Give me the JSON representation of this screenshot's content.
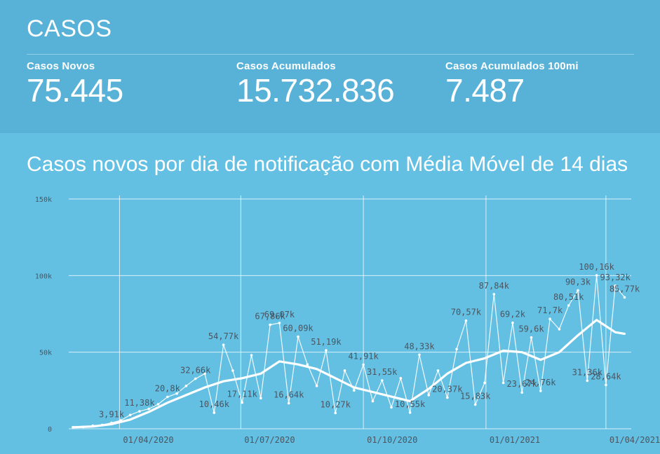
{
  "header": {
    "title": "CASOS"
  },
  "kpis": [
    {
      "label": "Casos Novos",
      "value": "75.445"
    },
    {
      "label": "Casos Acumulados",
      "value": "15.732.836"
    },
    {
      "label": "Casos Acumulados 100mi",
      "value": "7.487"
    }
  ],
  "colors": {
    "page_bg": "#64c0e3",
    "panel_bg": "#58b2d8",
    "line": "#ffffff",
    "label": "#4a5560"
  },
  "chart_data": {
    "type": "line",
    "title": "Casos novos por dia de notificação com Média Móvel de 14 dias",
    "xlabel": "",
    "ylabel": "",
    "xlim": [
      "2020-02-25",
      "2021-04-20"
    ],
    "ylim": [
      0,
      150000
    ],
    "y_ticks": [
      {
        "value": 0,
        "label": "0"
      },
      {
        "value": 50000,
        "label": "50k"
      },
      {
        "value": 100000,
        "label": "100k"
      },
      {
        "value": 150000,
        "label": "150k"
      }
    ],
    "x_ticks": [
      {
        "date": "2020-04-01",
        "label": "01/04/2020"
      },
      {
        "date": "2020-07-01",
        "label": "01/07/2020"
      },
      {
        "date": "2020-10-01",
        "label": "01/10/2020"
      },
      {
        "date": "2021-01-01",
        "label": "01/01/2021"
      },
      {
        "date": "2021-04-01",
        "label": "01/04/2021"
      }
    ],
    "grid": true,
    "series": [
      {
        "style": "daily",
        "points": [
          [
            "2020-02-26",
            1000
          ],
          [
            "2020-03-05",
            1200
          ],
          [
            "2020-03-12",
            2000
          ],
          [
            "2020-03-19",
            2500
          ],
          [
            "2020-03-26",
            3910
          ],
          [
            "2020-04-02",
            5500
          ],
          [
            "2020-04-09",
            9000
          ],
          [
            "2020-04-16",
            11380
          ],
          [
            "2020-04-23",
            13000
          ],
          [
            "2020-04-30",
            16000
          ],
          [
            "2020-05-07",
            20800
          ],
          [
            "2020-05-14",
            23000
          ],
          [
            "2020-05-21",
            28000
          ],
          [
            "2020-05-28",
            32660
          ],
          [
            "2020-06-04",
            36000
          ],
          [
            "2020-06-11",
            10460
          ],
          [
            "2020-06-18",
            54770
          ],
          [
            "2020-06-25",
            38000
          ],
          [
            "2020-07-02",
            17110
          ],
          [
            "2020-07-09",
            48000
          ],
          [
            "2020-07-16",
            20000
          ],
          [
            "2020-07-23",
            67860
          ],
          [
            "2020-07-30",
            69070
          ],
          [
            "2020-08-06",
            16640
          ],
          [
            "2020-08-13",
            60090
          ],
          [
            "2020-08-20",
            42000
          ],
          [
            "2020-08-27",
            28000
          ],
          [
            "2020-09-03",
            51190
          ],
          [
            "2020-09-10",
            10270
          ],
          [
            "2020-09-17",
            38000
          ],
          [
            "2020-09-24",
            25000
          ],
          [
            "2020-10-01",
            41910
          ],
          [
            "2020-10-08",
            18000
          ],
          [
            "2020-10-15",
            31550
          ],
          [
            "2020-10-22",
            14000
          ],
          [
            "2020-10-29",
            33000
          ],
          [
            "2020-11-05",
            10550
          ],
          [
            "2020-11-12",
            48330
          ],
          [
            "2020-11-19",
            22000
          ],
          [
            "2020-11-26",
            38000
          ],
          [
            "2020-12-03",
            20370
          ],
          [
            "2020-12-10",
            52000
          ],
          [
            "2020-12-17",
            70570
          ],
          [
            "2020-12-24",
            15830
          ],
          [
            "2020-12-31",
            30000
          ],
          [
            "2021-01-07",
            87840
          ],
          [
            "2021-01-14",
            30000
          ],
          [
            "2021-01-21",
            69200
          ],
          [
            "2021-01-28",
            23670
          ],
          [
            "2021-02-04",
            59600
          ],
          [
            "2021-02-11",
            24760
          ],
          [
            "2021-02-18",
            71700
          ],
          [
            "2021-02-25",
            65000
          ],
          [
            "2021-03-04",
            80510
          ],
          [
            "2021-03-11",
            90300
          ],
          [
            "2021-03-18",
            31360
          ],
          [
            "2021-03-25",
            100160
          ],
          [
            "2021-04-01",
            28640
          ],
          [
            "2021-04-08",
            93320
          ],
          [
            "2021-04-15",
            85770
          ]
        ]
      },
      {
        "style": "moving-average",
        "points": [
          [
            "2020-02-26",
            1000
          ],
          [
            "2020-03-12",
            1500
          ],
          [
            "2020-03-26",
            3000
          ],
          [
            "2020-04-09",
            6000
          ],
          [
            "2020-04-23",
            11000
          ],
          [
            "2020-05-07",
            17000
          ],
          [
            "2020-05-21",
            22000
          ],
          [
            "2020-06-04",
            27000
          ],
          [
            "2020-06-18",
            31000
          ],
          [
            "2020-07-02",
            33000
          ],
          [
            "2020-07-16",
            36000
          ],
          [
            "2020-07-30",
            44000
          ],
          [
            "2020-08-13",
            42000
          ],
          [
            "2020-08-27",
            39000
          ],
          [
            "2020-09-10",
            33000
          ],
          [
            "2020-09-24",
            27000
          ],
          [
            "2020-10-08",
            24000
          ],
          [
            "2020-10-22",
            21000
          ],
          [
            "2020-11-05",
            18000
          ],
          [
            "2020-11-19",
            26000
          ],
          [
            "2020-12-03",
            36000
          ],
          [
            "2020-12-17",
            43000
          ],
          [
            "2020-12-31",
            46000
          ],
          [
            "2021-01-14",
            51000
          ],
          [
            "2021-01-28",
            50000
          ],
          [
            "2021-02-11",
            45000
          ],
          [
            "2021-02-25",
            50000
          ],
          [
            "2021-03-11",
            61000
          ],
          [
            "2021-03-25",
            71000
          ],
          [
            "2021-04-08",
            63000
          ],
          [
            "2021-04-15",
            62000
          ]
        ]
      }
    ],
    "data_labels": [
      {
        "date": "2020-03-26",
        "value": 3910,
        "text": "3,91k"
      },
      {
        "date": "2020-04-16",
        "value": 11380,
        "text": "11,38k"
      },
      {
        "date": "2020-05-07",
        "value": 20800,
        "text": "20,8k"
      },
      {
        "date": "2020-05-28",
        "value": 32660,
        "text": "32,66k"
      },
      {
        "date": "2020-06-11",
        "value": 10460,
        "text": "10,46k"
      },
      {
        "date": "2020-06-18",
        "value": 54770,
        "text": "54,77k"
      },
      {
        "date": "2020-07-02",
        "value": 17110,
        "text": "17,11k"
      },
      {
        "date": "2020-07-23",
        "value": 67860,
        "text": "67,86k"
      },
      {
        "date": "2020-07-30",
        "value": 69070,
        "text": "69,07k"
      },
      {
        "date": "2020-08-06",
        "value": 16640,
        "text": "16,64k"
      },
      {
        "date": "2020-08-13",
        "value": 60090,
        "text": "60,09k"
      },
      {
        "date": "2020-09-03",
        "value": 51190,
        "text": "51,19k"
      },
      {
        "date": "2020-09-10",
        "value": 10270,
        "text": "10,27k"
      },
      {
        "date": "2020-10-01",
        "value": 41910,
        "text": "41,91k"
      },
      {
        "date": "2020-10-15",
        "value": 31550,
        "text": "31,55k"
      },
      {
        "date": "2020-11-05",
        "value": 10550,
        "text": "10,55k"
      },
      {
        "date": "2020-11-12",
        "value": 48330,
        "text": "48,33k"
      },
      {
        "date": "2020-12-03",
        "value": 20370,
        "text": "20,37k"
      },
      {
        "date": "2020-12-17",
        "value": 70570,
        "text": "70,57k"
      },
      {
        "date": "2020-12-24",
        "value": 15830,
        "text": "15,83k"
      },
      {
        "date": "2021-01-07",
        "value": 87840,
        "text": "87,84k"
      },
      {
        "date": "2021-01-21",
        "value": 69200,
        "text": "69,2k"
      },
      {
        "date": "2021-01-28",
        "value": 23670,
        "text": "23,67k"
      },
      {
        "date": "2021-02-04",
        "value": 59600,
        "text": "59,6k"
      },
      {
        "date": "2021-02-11",
        "value": 24760,
        "text": "24,76k"
      },
      {
        "date": "2021-02-18",
        "value": 71700,
        "text": "71,7k"
      },
      {
        "date": "2021-03-04",
        "value": 80510,
        "text": "80,51k"
      },
      {
        "date": "2021-03-11",
        "value": 90300,
        "text": "90,3k"
      },
      {
        "date": "2021-03-18",
        "value": 31360,
        "text": "31,36k"
      },
      {
        "date": "2021-03-25",
        "value": 100160,
        "text": "100,16k"
      },
      {
        "date": "2021-04-01",
        "value": 28640,
        "text": "28,64k"
      },
      {
        "date": "2021-04-08",
        "value": 93320,
        "text": "93,32k"
      },
      {
        "date": "2021-04-15",
        "value": 85770,
        "text": "85,77k"
      }
    ]
  }
}
